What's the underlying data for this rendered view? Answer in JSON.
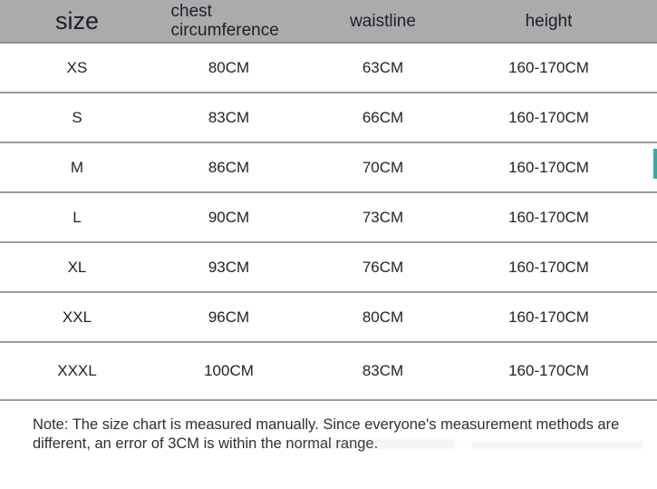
{
  "table": {
    "columns": [
      {
        "key": "size",
        "label": "size"
      },
      {
        "key": "chest",
        "label": "chest circumference"
      },
      {
        "key": "waist",
        "label": "waistline"
      },
      {
        "key": "height",
        "label": "height"
      }
    ],
    "rows": [
      {
        "size": "XS",
        "chest": "80CM",
        "waist": "63CM",
        "height": "160-170CM"
      },
      {
        "size": "S",
        "chest": "83CM",
        "waist": "66CM",
        "height": "160-170CM"
      },
      {
        "size": "M",
        "chest": "86CM",
        "waist": "70CM",
        "height": "160-170CM"
      },
      {
        "size": "L",
        "chest": "90CM",
        "waist": "73CM",
        "height": "160-170CM"
      },
      {
        "size": "XL",
        "chest": "93CM",
        "waist": "76CM",
        "height": "160-170CM"
      },
      {
        "size": "XXL",
        "chest": "96CM",
        "waist": "80CM",
        "height": "160-170CM"
      },
      {
        "size": "XXXL",
        "chest": "100CM",
        "waist": "83CM",
        "height": "160-170CM"
      }
    ]
  },
  "note": "Note: The size chart is measured manually. Since everyone's measurement methods are different, an error of 3CM is within the normal range.",
  "colors": {
    "page-bg": "#ffffff",
    "header-bg": "#acaaab",
    "header-text": "#211d2b",
    "row-separator": "#9b9b9b",
    "cell-text": "#242424",
    "note-text": "#2f2f2f",
    "scrollbar-accent": "#3aa79f"
  }
}
